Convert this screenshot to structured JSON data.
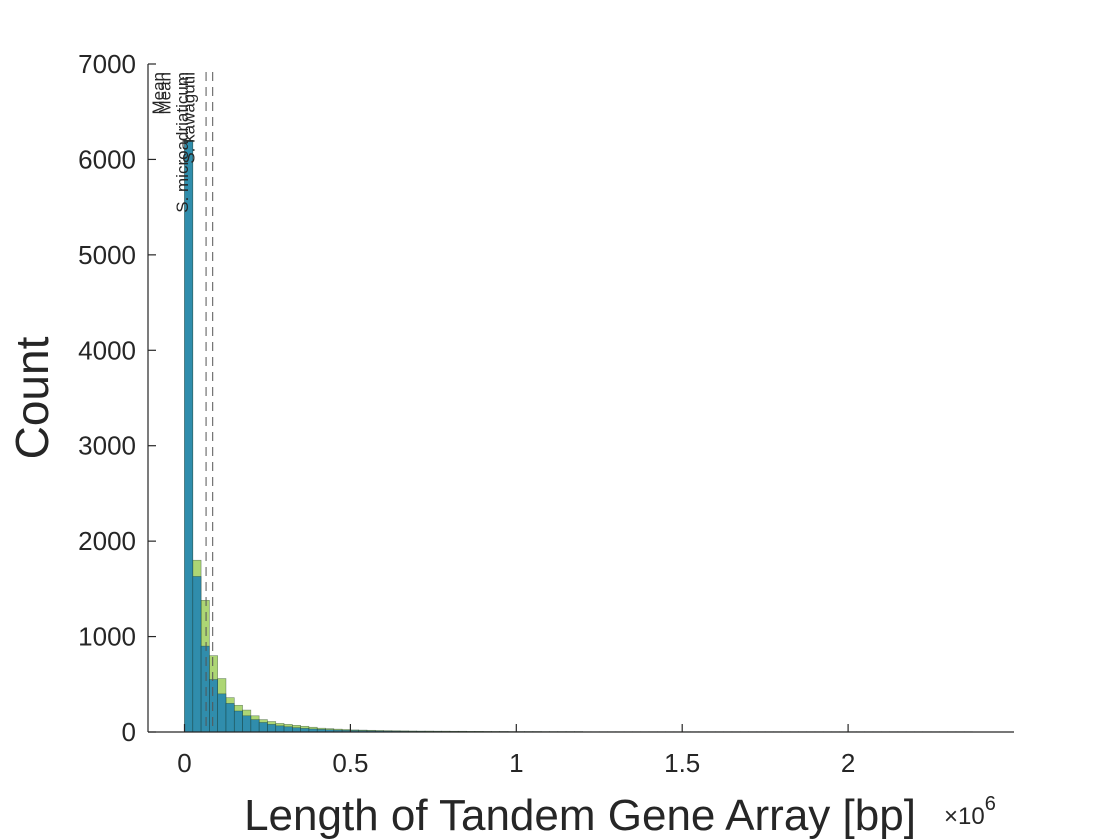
{
  "chart_data": {
    "type": "bar",
    "title": "",
    "xlabel": "Length of Tandem Gene Array [bp]",
    "ylabel": "Count",
    "x_multiplier": "×10",
    "x_multiplier_exp": "6",
    "xlim": [
      -0.11,
      2.5
    ],
    "ylim": [
      0,
      7000
    ],
    "xticks": [
      0,
      0.5,
      1,
      1.5,
      2
    ],
    "xtick_labels": [
      "0",
      "0.5",
      "1",
      "1.5",
      "2"
    ],
    "yticks": [
      0,
      1000,
      2000,
      3000,
      4000,
      5000,
      6000,
      7000
    ],
    "ytick_labels": [
      "0",
      "1000",
      "2000",
      "3000",
      "4000",
      "5000",
      "6000",
      "7000"
    ],
    "grid": false,
    "legend": "none",
    "bin_start": 0.0,
    "bin_width": 0.025,
    "series": [
      {
        "color": "#8dc63f",
        "values": [
          6200,
          1800,
          1380,
          800,
          560,
          360,
          280,
          230,
          170,
          130,
          110,
          90,
          80,
          70,
          60,
          50,
          40,
          35,
          30,
          26,
          22,
          20,
          18,
          16,
          14,
          13,
          12,
          11,
          10,
          10,
          9,
          9,
          8,
          8,
          7,
          7,
          6,
          6,
          6,
          5,
          5,
          5,
          5,
          4,
          4,
          4,
          4,
          4,
          3,
          3,
          3,
          3,
          3,
          3,
          3,
          3,
          3,
          3,
          3,
          3,
          3,
          3,
          3,
          3,
          3,
          3,
          3,
          3,
          3,
          3,
          3,
          3,
          3,
          3,
          3,
          3,
          3,
          3,
          3,
          3,
          3,
          3,
          3,
          3,
          3,
          3,
          3,
          3,
          3,
          3,
          3,
          3,
          3,
          3,
          3
        ]
      },
      {
        "color": "#1a80b6",
        "values": [
          6200,
          1630,
          900,
          550,
          400,
          300,
          220,
          170,
          130,
          100,
          80,
          65,
          55,
          45,
          38,
          32,
          28,
          24,
          20,
          18,
          16,
          14,
          12,
          11,
          10,
          9,
          8,
          7,
          7,
          6,
          6,
          5,
          5,
          5,
          4,
          4,
          4,
          3,
          3,
          3,
          3,
          3,
          3,
          3,
          3,
          3,
          3,
          3,
          2,
          2,
          2,
          2,
          2,
          2,
          2,
          2,
          2,
          2,
          2,
          2,
          2,
          2,
          2,
          2,
          2,
          2,
          2,
          2,
          2,
          2,
          2,
          2,
          2,
          2,
          2,
          2,
          2,
          2,
          2,
          2,
          2,
          2,
          2,
          2,
          2,
          2,
          2,
          2,
          2,
          2,
          2,
          2,
          2,
          2,
          2
        ]
      }
    ],
    "mean_lines": [
      {
        "x": 0.065,
        "label1": "Mean",
        "label2": "S. microadriaticum"
      },
      {
        "x": 0.085,
        "label1": "Mean",
        "label2": "S. kawagutii"
      }
    ]
  }
}
